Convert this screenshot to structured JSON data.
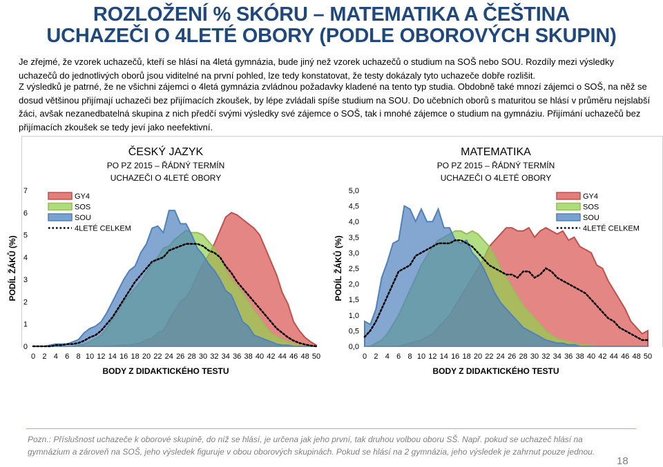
{
  "title": {
    "line1": "ROZLOŽENÍ % SKÓRU – MATEMATIKA A ČEŠTINA",
    "line2": "UCHAZEČI O 4LETÉ OBORY (PODLE OBOROVÝCH SKUPIN)"
  },
  "paragraphs": {
    "p1": "Je zřejmé, že vzorek uchazečů, kteří se hlásí na 4letá gymnázia, bude jiný než vzorek uchazečů o studium na SOŠ nebo SOU. Rozdíly mezi výsledky uchazečů do jednotlivých oborů jsou viditelné na první pohled, lze tedy konstatovat, že testy dokázaly tyto uchazeče dobře rozlišit.",
    "p2": "Z výsledků je patrné, že ne všichni zájemci o 4letá gymnázia zvládnou požadavky kladené na tento typ studia. Obdobně také mnozí zájemci o SOŠ, na něž se dosud většinou přijímají uchazeči bez přijímacích zkoušek, by lépe zvládali spíše studium na SOU. Do učebních oborů s maturitou se hlásí v průměru nejslabší žáci, avšak nezanedbatelná skupina z nich předčí svými výsledky své zájemce o SOŠ, tak i mnohé zájemce o studium na gymnáziu. Přijímání uchazečů bez přijímacích zkoušek se tedy jeví jako neefektivní."
  },
  "colors": {
    "GY4": "#d9534f",
    "SOS": "#92d050",
    "SOU": "#4f81bd",
    "celkem": "#000000",
    "title": "#1f497d"
  },
  "chart_data": [
    {
      "type": "area",
      "title": "ČESKÝ JAZYK",
      "subtitle1": "PO PZ 2015 – ŘÁDNÝ TERMÍN",
      "subtitle2": "UCHAZEČI O 4LETÉ OBORY",
      "xlabel": "BODY Z DIDAKTICKÉHO TESTU",
      "ylabel": "PODÍL ŽÁKŮ (%)",
      "ylim": [
        0,
        7
      ],
      "yticks": [
        "0",
        "1",
        "2",
        "3",
        "4",
        "5",
        "6",
        "7"
      ],
      "xlim": [
        0,
        50
      ],
      "xticks": [
        "0",
        "2",
        "4",
        "6",
        "8",
        "10",
        "12",
        "14",
        "16",
        "18",
        "20",
        "22",
        "24",
        "26",
        "28",
        "30",
        "32",
        "34",
        "36",
        "38",
        "40",
        "42",
        "44",
        "46",
        "48",
        "50"
      ],
      "legend_position": "top-left",
      "x": [
        0,
        1,
        2,
        3,
        4,
        5,
        6,
        7,
        8,
        9,
        10,
        11,
        12,
        13,
        14,
        15,
        16,
        17,
        18,
        19,
        20,
        21,
        22,
        23,
        24,
        25,
        26,
        27,
        28,
        29,
        30,
        31,
        32,
        33,
        34,
        35,
        36,
        37,
        38,
        39,
        40,
        41,
        42,
        43,
        44,
        45,
        46,
        47,
        48,
        49,
        50
      ],
      "series": [
        {
          "name": "GY4",
          "values": [
            0,
            0,
            0,
            0,
            0,
            0,
            0,
            0,
            0,
            0,
            0,
            0,
            0,
            0,
            0.02,
            0.03,
            0.05,
            0.05,
            0.1,
            0.15,
            0.3,
            0.35,
            0.6,
            0.7,
            1.2,
            1.6,
            2.0,
            2.2,
            2.6,
            3.2,
            3.7,
            4.1,
            4.6,
            5.2,
            5.8,
            6.0,
            5.9,
            5.7,
            5.5,
            5.3,
            5.0,
            4.4,
            3.8,
            3.2,
            2.4,
            1.9,
            1.1,
            0.7,
            0.4,
            0.2,
            0.05
          ]
        },
        {
          "name": "SOS",
          "values": [
            0,
            0,
            0,
            0,
            0,
            0,
            0,
            0,
            0.05,
            0.1,
            0.2,
            0.35,
            0.5,
            0.8,
            1.2,
            1.6,
            2.0,
            2.3,
            2.6,
            2.9,
            3.3,
            3.7,
            4.0,
            4.4,
            4.5,
            4.8,
            5.0,
            5.2,
            5.1,
            5.1,
            5.0,
            4.7,
            4.4,
            4.0,
            3.4,
            3.0,
            2.7,
            2.4,
            2.0,
            1.6,
            1.3,
            0.9,
            0.6,
            0.45,
            0.3,
            0.2,
            0.1,
            0.05,
            0.02,
            0,
            0
          ]
        },
        {
          "name": "SOU",
          "values": [
            0,
            0,
            0,
            0.05,
            0.1,
            0.1,
            0.1,
            0.2,
            0.3,
            0.6,
            0.8,
            0.9,
            1.1,
            1.5,
            2.0,
            2.5,
            3.0,
            3.4,
            3.6,
            4.2,
            4.6,
            5.3,
            5.4,
            5.1,
            6.1,
            6.1,
            5.5,
            5.5,
            5.0,
            4.4,
            4.1,
            3.7,
            3.4,
            3.0,
            2.5,
            2.3,
            1.7,
            1.1,
            0.9,
            0.5,
            0.4,
            0.3,
            0.2,
            0.1,
            0.05,
            0.05,
            0,
            0,
            0,
            0,
            0
          ]
        },
        {
          "name": "4LETÉ CELKEM",
          "values": [
            0,
            0,
            0,
            0,
            0.05,
            0.05,
            0.1,
            0.1,
            0.15,
            0.25,
            0.4,
            0.5,
            0.7,
            1.0,
            1.3,
            1.7,
            2.1,
            2.5,
            2.9,
            3.2,
            3.5,
            3.8,
            3.9,
            4.0,
            4.3,
            4.4,
            4.5,
            4.6,
            4.6,
            4.6,
            4.5,
            4.3,
            4.2,
            4.0,
            3.6,
            3.3,
            2.9,
            2.6,
            2.3,
            2.0,
            1.7,
            1.4,
            1.1,
            0.8,
            0.6,
            0.4,
            0.25,
            0.15,
            0.08,
            0.03,
            0
          ]
        }
      ]
    },
    {
      "type": "area",
      "title": "MATEMATIKA",
      "subtitle1": "PO PZ 2015 – ŘÁDNÝ TERMÍN",
      "subtitle2": "UCHAZEČI O 4LETÉ OBORY",
      "xlabel": "BODY Z DIDAKTICKÉHO TESTU",
      "ylabel": "PODÍL ŽÁKŮ (%)",
      "ylim": [
        0,
        5
      ],
      "yticks": [
        "0,0",
        "0,5",
        "1,0",
        "1,5",
        "2,0",
        "2,5",
        "3,0",
        "3,5",
        "4,0",
        "4,5",
        "5,0"
      ],
      "xlim": [
        0,
        50
      ],
      "xticks": [
        "0",
        "2",
        "4",
        "6",
        "8",
        "10",
        "12",
        "14",
        "16",
        "18",
        "20",
        "22",
        "24",
        "26",
        "28",
        "30",
        "32",
        "34",
        "36",
        "38",
        "40",
        "42",
        "44",
        "46",
        "48",
        "50"
      ],
      "legend_position": "top-right",
      "x": [
        0,
        1,
        2,
        3,
        4,
        5,
        6,
        7,
        8,
        9,
        10,
        11,
        12,
        13,
        14,
        15,
        16,
        17,
        18,
        19,
        20,
        21,
        22,
        23,
        24,
        25,
        26,
        27,
        28,
        29,
        30,
        31,
        32,
        33,
        34,
        35,
        36,
        37,
        38,
        39,
        40,
        41,
        42,
        43,
        44,
        45,
        46,
        47,
        48,
        49,
        50
      ],
      "series": [
        {
          "name": "GY4",
          "values": [
            0,
            0,
            0,
            0,
            0,
            0,
            0,
            0.05,
            0.1,
            0.15,
            0.2,
            0.3,
            0.4,
            0.6,
            0.8,
            1.0,
            1.3,
            1.6,
            1.9,
            2.2,
            2.5,
            2.8,
            3.2,
            3.4,
            3.6,
            3.8,
            3.8,
            3.7,
            3.7,
            3.8,
            3.5,
            3.7,
            3.8,
            3.7,
            3.6,
            3.7,
            3.4,
            3.5,
            3.2,
            3.1,
            3.0,
            2.6,
            2.5,
            2.1,
            1.8,
            1.5,
            1.2,
            0.8,
            0.6,
            0.4,
            0.5
          ]
        },
        {
          "name": "SOS",
          "values": [
            0,
            0,
            0.1,
            0.2,
            0.4,
            0.7,
            1.0,
            1.4,
            1.8,
            2.2,
            2.6,
            2.9,
            3.2,
            3.4,
            3.5,
            3.6,
            3.7,
            3.7,
            3.6,
            3.7,
            3.6,
            3.4,
            3.2,
            2.9,
            2.5,
            2.2,
            1.9,
            1.6,
            1.3,
            1.1,
            0.9,
            0.7,
            0.5,
            0.35,
            0.25,
            0.2,
            0.15,
            0.1,
            0.05,
            0.05,
            0.02,
            0,
            0,
            0,
            0,
            0,
            0,
            0,
            0,
            0,
            0
          ]
        },
        {
          "name": "SOU",
          "values": [
            0.8,
            0.7,
            1.2,
            2.2,
            2.7,
            3.3,
            3.4,
            4.5,
            4.4,
            4.0,
            4.4,
            4.0,
            4.0,
            4.4,
            3.8,
            3.8,
            3.4,
            3.3,
            3.4,
            3.0,
            2.8,
            2.5,
            2.1,
            1.7,
            1.4,
            1.2,
            1.0,
            0.8,
            0.6,
            0.5,
            0.4,
            0.3,
            0.2,
            0.15,
            0.1,
            0.1,
            0.05,
            0.05,
            0,
            0,
            0,
            0,
            0,
            0,
            0,
            0,
            0,
            0,
            0,
            0,
            0
          ]
        },
        {
          "name": "4LETÉ CELKEM",
          "values": [
            0.3,
            0.5,
            0.8,
            1.2,
            1.6,
            2.0,
            2.4,
            2.5,
            2.6,
            2.9,
            3.0,
            3.1,
            3.2,
            3.3,
            3.3,
            3.3,
            3.4,
            3.4,
            3.3,
            3.2,
            3.0,
            2.8,
            2.6,
            2.5,
            2.4,
            2.3,
            2.3,
            2.2,
            2.4,
            2.4,
            2.2,
            2.3,
            2.5,
            2.4,
            2.2,
            2.1,
            2.0,
            1.9,
            1.8,
            1.7,
            1.5,
            1.3,
            1.1,
            0.9,
            0.8,
            0.6,
            0.5,
            0.4,
            0.3,
            0.2,
            0.2
          ]
        }
      ]
    }
  ],
  "note": "Pozn.: Příslušnost uchazeče k oborové skupině, do níž se hlásí, je určena jak jeho první, tak druhou volbou oboru SŠ. Např. pokud se uchazeč hlásí na gymnázium a zároveň na SOŠ, jeho výsledek figuruje v obou oborových skupinách. Pokud se hlásí na 2 gymnázia, jeho výsledek je zahrnut pouze jednou.",
  "page_number": "18"
}
